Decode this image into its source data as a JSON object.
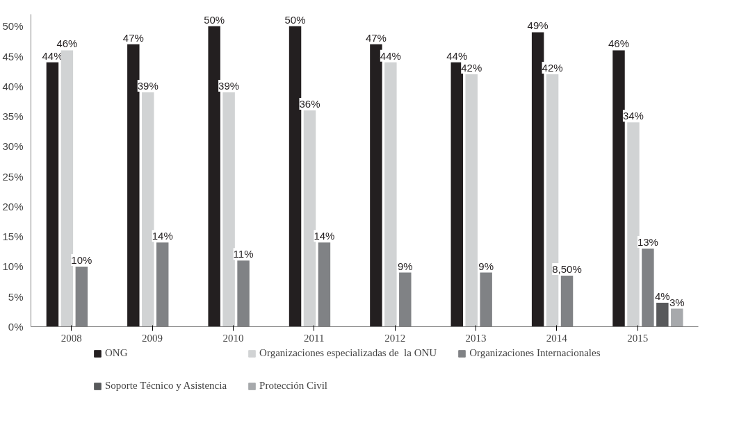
{
  "chart_data": {
    "type": "bar",
    "categories": [
      "2008",
      "2009",
      "2010",
      "2011",
      "2012",
      "2013",
      "2014",
      "2015"
    ],
    "series": [
      {
        "name": "ONG",
        "color": "#231f20",
        "values": [
          44,
          47,
          50,
          50,
          47,
          44,
          49,
          46
        ],
        "value_labels": [
          "44%",
          "47%",
          "50%",
          "50%",
          "47%",
          "44%",
          "49%",
          "46%"
        ]
      },
      {
        "name": "Organizaciones especializadas de  la ONU",
        "color": "#d1d3d4",
        "values": [
          46,
          39,
          39,
          36,
          44,
          42,
          42,
          34
        ],
        "value_labels": [
          "46%",
          "39%",
          "39%",
          "36%",
          "44%",
          "42%",
          "42%",
          "34%"
        ]
      },
      {
        "name": "Organizaciones Internacionales",
        "color": "#808285",
        "values": [
          10,
          14,
          11,
          14,
          9,
          9,
          8.5,
          13
        ],
        "value_labels": [
          "10%",
          "14%",
          "11%",
          "14%",
          "9%",
          "9%",
          "8,50%",
          "13%"
        ]
      },
      {
        "name": "Soporte Técnico y Asistencia",
        "color": "#58595b",
        "values": [
          null,
          null,
          null,
          null,
          null,
          null,
          null,
          4
        ],
        "value_labels": [
          null,
          null,
          null,
          null,
          null,
          null,
          null,
          "4%"
        ]
      },
      {
        "name": "Protección Civil",
        "color": "#a7a9ac",
        "values": [
          null,
          null,
          null,
          null,
          null,
          null,
          null,
          3
        ],
        "value_labels": [
          null,
          null,
          null,
          null,
          null,
          null,
          null,
          "3%"
        ]
      }
    ],
    "ylim": [
      0,
      52
    ],
    "yticks": [
      {
        "value": 0,
        "label": "0%"
      },
      {
        "value": 5,
        "label": "5%"
      },
      {
        "value": 10,
        "label": "10%"
      },
      {
        "value": 15,
        "label": "15%"
      },
      {
        "value": 20,
        "label": "20%"
      },
      {
        "value": 25,
        "label": "25%"
      },
      {
        "value": 30,
        "label": "30%"
      },
      {
        "value": 35,
        "label": "35%"
      },
      {
        "value": 40,
        "label": "40%"
      },
      {
        "value": 45,
        "label": "45%"
      },
      {
        "value": 50,
        "label": "50%"
      }
    ],
    "grid": false,
    "legend": "bottom"
  }
}
